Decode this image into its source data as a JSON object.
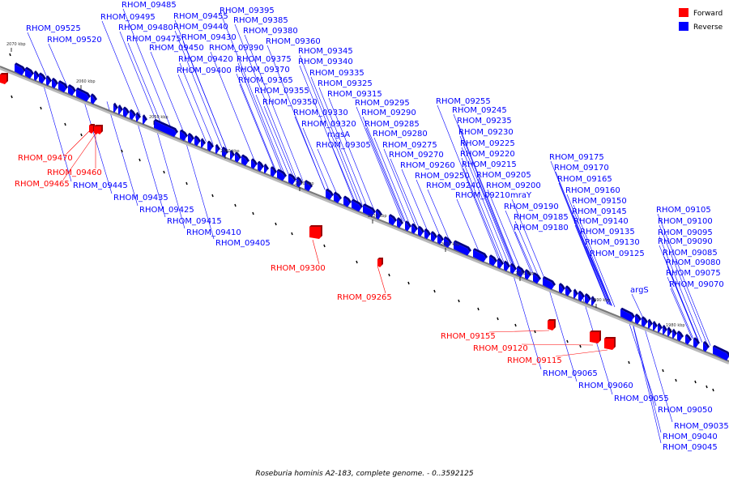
{
  "caption": "Roseburia hominis A2-183, complete genome. - 0..3592125",
  "legend": [
    {
      "label": "Forward",
      "color": "#ff0000"
    },
    {
      "label": "Reverse",
      "color": "#0000ff"
    }
  ],
  "colors": {
    "forward": "#ff0000",
    "reverse": "#0000ff",
    "backbone": "#777777"
  },
  "ticks": [
    "2070 kbp",
    "2060 kbp",
    "2050 kbp",
    "2040 kbp",
    "2030 kbp",
    "2020 kbp",
    "2010 kbp",
    "2000 kbp",
    "1990 kbp",
    "1980 kbp"
  ],
  "reverse_labels": [
    "RHOM_09485",
    "RHOM_09495",
    "RHOM_09455",
    "RHOM_09395",
    "RHOM_09385",
    "RHOM_09525",
    "RHOM_09480",
    "RHOM_09440",
    "RHOM_09380",
    "RHOM_09520",
    "RHOM_09475",
    "RHOM_09430",
    "RHOM_09360",
    "RHOM_09390",
    "RHOM_09450",
    "RHOM_09345",
    "RHOM_09420",
    "RHOM_09375",
    "RHOM_09340",
    "RHOM_09400",
    "RHOM_09370",
    "RHOM_09335",
    "RHOM_09365",
    "RHOM_09325",
    "RHOM_09355",
    "RHOM_09315",
    "RHOM_09350",
    "RHOM_09295",
    "RHOM_09330",
    "RHOM_09290",
    "RHOM_09320",
    "RHOM_09285",
    "mgsA",
    "RHOM_09280",
    "RHOM_09305",
    "RHOM_09275",
    "RHOM_09270",
    "RHOM_09260",
    "RHOM_09250",
    "RHOM_09240",
    "RHOM_09210",
    "mraY",
    "RHOM_09255",
    "RHOM_09245",
    "RHOM_09235",
    "RHOM_09230",
    "RHOM_09225",
    "RHOM_09220",
    "RHOM_09215",
    "RHOM_09205",
    "RHOM_09200",
    "RHOM_09190",
    "RHOM_09185",
    "RHOM_09180",
    "RHOM_09175",
    "RHOM_09170",
    "RHOM_09165",
    "RHOM_09160",
    "RHOM_09150",
    "RHOM_09145",
    "RHOM_09140",
    "RHOM_09135",
    "RHOM_09130",
    "RHOM_09125",
    "argS",
    "RHOM_09105",
    "RHOM_09100",
    "RHOM_09095",
    "RHOM_09090",
    "RHOM_09085",
    "RHOM_09080",
    "RHOM_09075",
    "RHOM_09070",
    "RHOM_09445",
    "RHOM_09435",
    "RHOM_09425",
    "RHOM_09415",
    "RHOM_09410",
    "RHOM_09405",
    "RHOM_09065",
    "RHOM_09060",
    "RHOM_09055",
    "RHOM_09050",
    "RHOM_09035",
    "RHOM_09040",
    "RHOM_09045"
  ],
  "forward_labels": [
    "RHOM_09470",
    "RHOM_09460",
    "RHOM_09465",
    "RHOM_09300",
    "RHOM_09265",
    "RHOM_09155",
    "RHOM_09120",
    "RHOM_09115"
  ]
}
